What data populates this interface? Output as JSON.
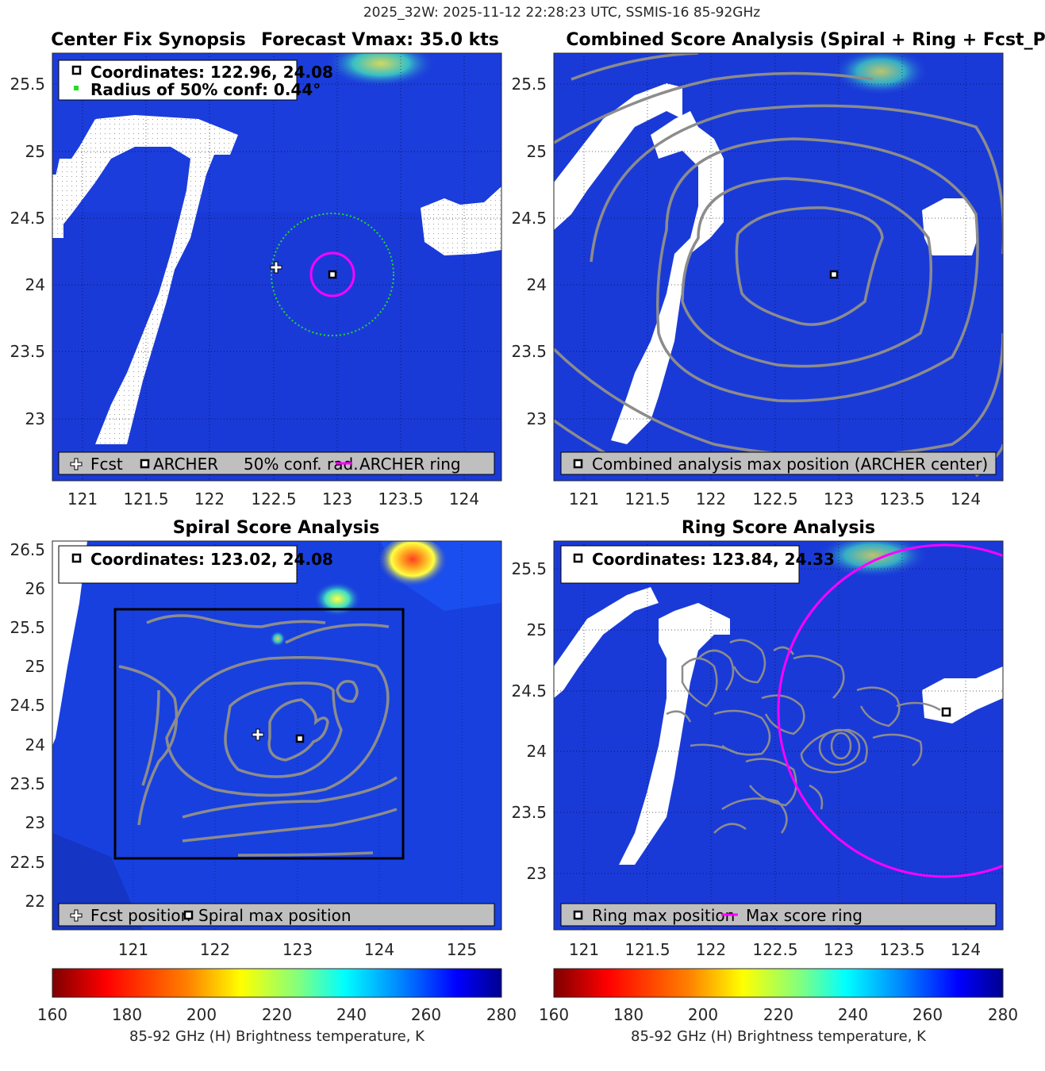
{
  "suptitle": "2025_32W: 2025-11-12 22:28:23 UTC, SSMIS-16 85-92GHz",
  "colors": {
    "background_tb": "#1a3ad8",
    "deep_blue": "#0f1f9e",
    "contour": "#8c8c8c",
    "magenta": "#ff00ff",
    "green_dots": "#22dd22",
    "legend_bg": "#bfbfbf"
  },
  "panels": {
    "synopsis": {
      "title_left": "Center Fix Synopsis",
      "title_right": "Forecast Vmax: 35.0 kts",
      "coord_line1": "Coordinates: 122.96, 24.08",
      "coord_line2": "Radius of 50% conf: 0.44°",
      "legend": {
        "fcst": "Fcst",
        "archer": "ARCHER",
        "conf": "50% conf. rad.",
        "ring": "ARCHER ring"
      },
      "xticks": [
        "121",
        "121.5",
        "122",
        "122.5",
        "123",
        "123.5",
        "124"
      ],
      "yticks": [
        "23",
        "23.5",
        "24",
        "24.5",
        "25",
        "25.5"
      ]
    },
    "combined": {
      "title": "Combined Score Analysis (Spiral + Ring + Fcst_Pe",
      "legend": "Combined analysis max position (ARCHER center)",
      "xticks": [
        "121",
        "121.5",
        "122",
        "122.5",
        "123",
        "123.5",
        "124"
      ],
      "yticks": [
        "23",
        "23.5",
        "24",
        "24.5",
        "25",
        "25.5"
      ]
    },
    "spiral": {
      "title": "Spiral Score Analysis",
      "coord_line": "Coordinates: 123.02, 24.08",
      "legend": {
        "fcst": "Fcst position",
        "max": "Spiral max position"
      },
      "xticks": [
        "121",
        "122",
        "123",
        "124",
        "125"
      ],
      "yticks": [
        "22",
        "22.5",
        "23",
        "23.5",
        "24",
        "24.5",
        "25",
        "25.5",
        "26",
        "26.5"
      ]
    },
    "ring": {
      "title": "Ring Score Analysis",
      "coord_line": "Coordinates: 123.84, 24.33",
      "legend": {
        "max": "Ring max position",
        "ring": "Max score ring"
      },
      "xticks": [
        "121",
        "121.5",
        "122",
        "122.5",
        "123",
        "123.5",
        "124"
      ],
      "yticks": [
        "23",
        "23.5",
        "24",
        "24.5",
        "25",
        "25.5"
      ]
    }
  },
  "colorbars": [
    {
      "ticks": [
        "160",
        "180",
        "200",
        "220",
        "240",
        "260",
        "280"
      ],
      "label": "85-92 GHz (H) Brightness temperature, K"
    },
    {
      "ticks": [
        "160",
        "180",
        "200",
        "220",
        "240",
        "260",
        "280"
      ],
      "label": "85-92 GHz (H) Brightness temperature, K"
    }
  ],
  "chart_data": [
    {
      "type": "heatmap",
      "title": "Center Fix Synopsis     Forecast Vmax: 35.0 kts",
      "xlim": [
        120.78,
        124.32
      ],
      "ylim": [
        22.55,
        25.75
      ],
      "points": {
        "fcst": [
          122.54,
          24.13
        ],
        "archer": [
          122.96,
          24.08
        ]
      },
      "conf_radius_deg": 0.44,
      "archer_ring_radius_deg": 0.16
    },
    {
      "type": "heatmap",
      "title": "Combined Score Analysis (Spiral + Ring + Fcst_Pe",
      "xlim": [
        120.78,
        124.32
      ],
      "ylim": [
        22.55,
        25.75
      ],
      "points": {
        "max": [
          122.96,
          24.08
        ]
      }
    },
    {
      "type": "heatmap",
      "title": "Spiral Score Analysis",
      "xlim": [
        120.05,
        125.45
      ],
      "ylim": [
        21.65,
        26.6
      ],
      "points": {
        "fcst": [
          122.54,
          24.13
        ],
        "max": [
          123.02,
          24.08
        ]
      },
      "box": {
        "lon": [
          120.8,
          124.3
        ],
        "lat": [
          22.55,
          25.75
        ]
      }
    },
    {
      "type": "heatmap",
      "title": "Ring Score Analysis",
      "xlim": [
        120.78,
        124.32
      ],
      "ylim": [
        22.55,
        25.75
      ],
      "points": {
        "max": [
          123.84,
          24.33
        ]
      },
      "ring": {
        "center": [
          123.84,
          24.33
        ],
        "radius_deg": 1.3
      }
    },
    {
      "type": "colorbar",
      "range": [
        160,
        280
      ],
      "colormap": [
        "#7f0000",
        "#ff0000",
        "#ff8000",
        "#ffff00",
        "#80ff80",
        "#00ffff",
        "#0080ff",
        "#0000ff",
        "#00008f"
      ]
    }
  ]
}
